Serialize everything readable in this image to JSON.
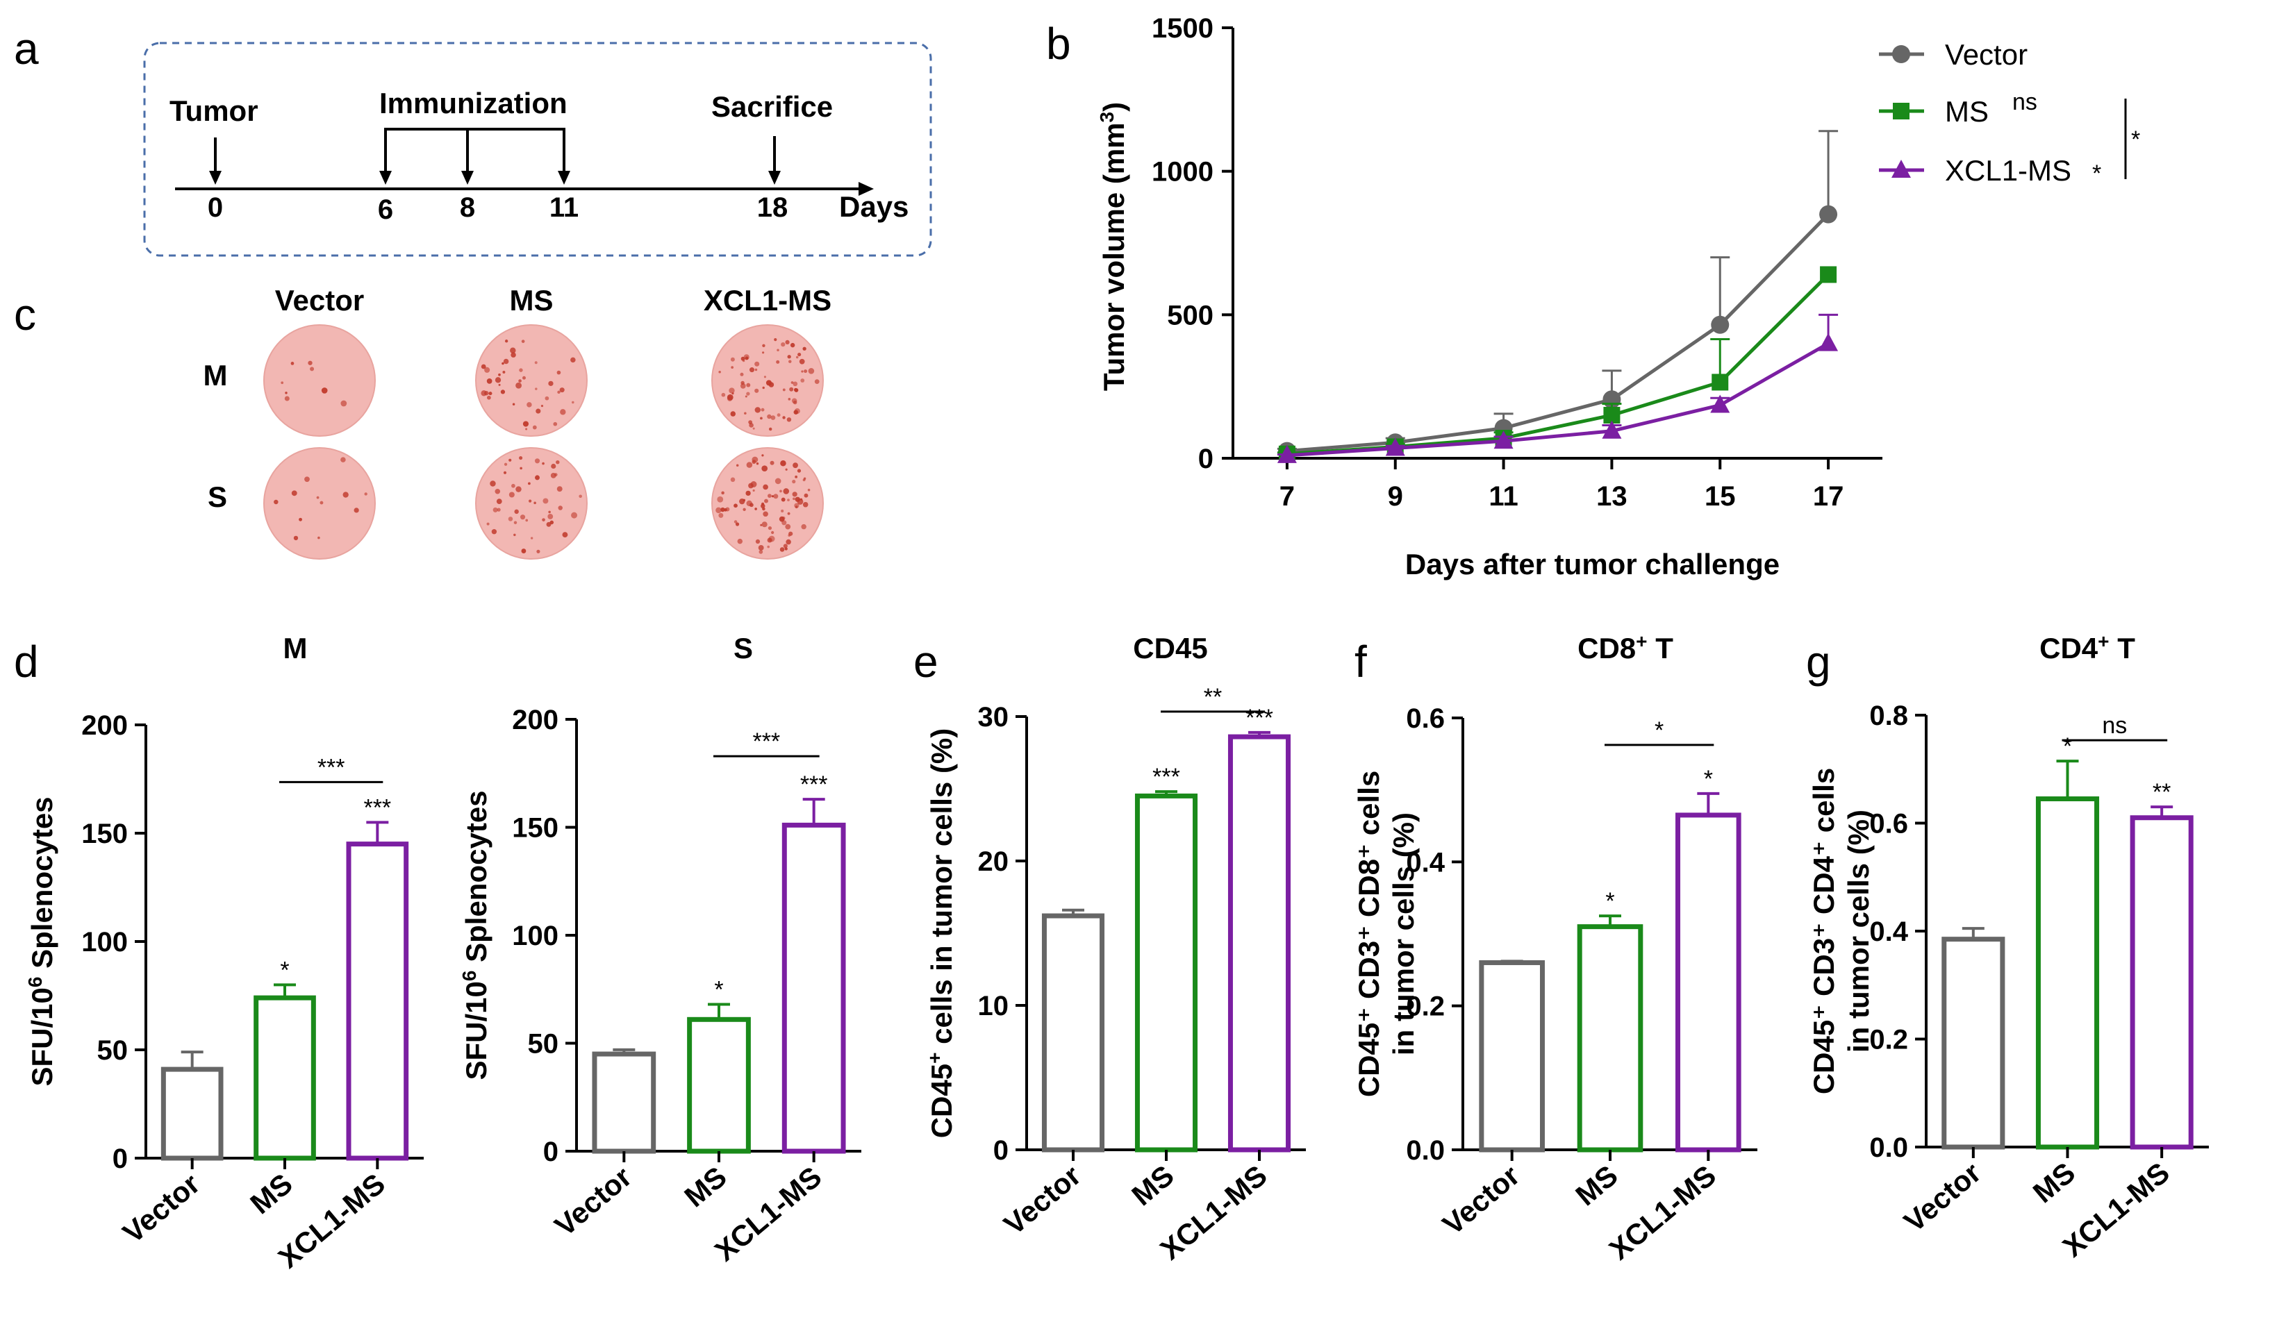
{
  "panel_letters": {
    "a": "a",
    "b": "b",
    "c": "c",
    "d": "d",
    "e": "e",
    "f": "f",
    "g": "g"
  },
  "timeline": {
    "events": [
      {
        "label": "Tumor",
        "days": [
          0
        ]
      },
      {
        "label": "Immunization",
        "days": [
          6,
          8,
          11
        ]
      },
      {
        "label": "Sacrifice",
        "days": [
          18
        ]
      }
    ],
    "ticks": [
      "0",
      "6",
      "8",
      "11",
      "18"
    ],
    "unit": "Days"
  },
  "elispot": {
    "columns": [
      "Vector",
      "MS",
      "XCL1-MS"
    ],
    "rows": [
      "M",
      "S"
    ],
    "spot_color": "#c0392b",
    "well_color": "#f2b7b3",
    "spot_density": [
      [
        8,
        40,
        70
      ],
      [
        12,
        45,
        85
      ]
    ]
  },
  "colors": {
    "Vector": "#666666",
    "MS": "#1a8a1a",
    "XCL1-MS": "#7b1fa2"
  },
  "chart_data": [
    {
      "id": "b",
      "type": "line",
      "title": "",
      "xlabel": "Days after tumor challenge",
      "ylabel_main": "Tumor volume (mm",
      "ylabel_sup": "3",
      "ylabel_close": ")",
      "x": [
        7,
        9,
        11,
        13,
        15,
        17
      ],
      "xticks": [
        "7",
        "9",
        "11",
        "13",
        "15",
        "17"
      ],
      "yticks": [
        "0",
        "500",
        "1000",
        "1500"
      ],
      "ylim": [
        0,
        1500
      ],
      "series": [
        {
          "name": "Vector",
          "marker": "circle",
          "values": [
            25,
            55,
            105,
            205,
            465,
            850
          ],
          "errors": [
            8,
            15,
            50,
            100,
            235,
            290
          ],
          "annot": ""
        },
        {
          "name": "MS",
          "marker": "square",
          "values": [
            15,
            40,
            70,
            150,
            265,
            640
          ],
          "errors": [
            5,
            10,
            20,
            40,
            150,
            0
          ],
          "annot": "ns"
        },
        {
          "name": "XCL1-MS",
          "marker": "triangle",
          "values": [
            10,
            35,
            60,
            95,
            185,
            400
          ],
          "errors": [
            3,
            8,
            15,
            20,
            25,
            100
          ],
          "annot": "*"
        }
      ],
      "bracket_sig": "*"
    },
    {
      "id": "d1",
      "type": "bar",
      "title": "M",
      "ylabel": "SFU/10",
      "ylabel_sup": "6",
      "ylabel_tail": " Splenocytes",
      "categories": [
        "Vector",
        "MS",
        "XCL1-MS"
      ],
      "values": [
        41,
        74,
        145
      ],
      "errors": [
        8,
        6,
        10
      ],
      "sig": [
        "",
        "*",
        "***"
      ],
      "brackets": [
        {
          "from": 1,
          "to": 2,
          "label": "***"
        }
      ],
      "yticks": [
        "0",
        "50",
        "100",
        "150",
        "200"
      ],
      "ylim": [
        0,
        200
      ]
    },
    {
      "id": "d2",
      "type": "bar",
      "title": "S",
      "ylabel": "SFU/10",
      "ylabel_sup": "6",
      "ylabel_tail": " Splenocytes",
      "categories": [
        "Vector",
        "MS",
        "XCL1-MS"
      ],
      "values": [
        45,
        61,
        151
      ],
      "errors": [
        2,
        7,
        12
      ],
      "sig": [
        "",
        "*",
        "***"
      ],
      "brackets": [
        {
          "from": 1,
          "to": 2,
          "label": "***"
        }
      ],
      "yticks": [
        "0",
        "50",
        "100",
        "150",
        "200"
      ],
      "ylim": [
        0,
        200
      ]
    },
    {
      "id": "e",
      "type": "bar",
      "title": "CD45",
      "ylabel": "CD45",
      "ylabel_sup": "+",
      "ylabel_tail": " cells in tumor cells (%)",
      "categories": [
        "Vector",
        "MS",
        "XCL1-MS"
      ],
      "values": [
        16.2,
        24.5,
        28.6
      ],
      "errors": [
        0.4,
        0.3,
        0.3
      ],
      "sig": [
        "",
        "***",
        "***"
      ],
      "brackets": [
        {
          "from": 1,
          "to": 2,
          "label": "**"
        }
      ],
      "yticks": [
        "0",
        "10",
        "20",
        "30"
      ],
      "ylim": [
        0,
        30
      ]
    },
    {
      "id": "f",
      "type": "bar",
      "title": "CD8",
      "title_sup": "+",
      "title_tail": " T",
      "ylabel_line1": "CD45⁺ CD3⁺ CD8⁺ cells",
      "ylabel_line2": "in tumor cells (%)",
      "categories": [
        "Vector",
        "MS",
        "XCL1-MS"
      ],
      "values": [
        0.26,
        0.31,
        0.465
      ],
      "errors": [
        0.002,
        0.015,
        0.03
      ],
      "sig": [
        "",
        "*",
        "*"
      ],
      "brackets": [
        {
          "from": 1,
          "to": 2,
          "label": "*"
        }
      ],
      "yticks": [
        "0.0",
        "0.2",
        "0.4",
        "0.6"
      ],
      "ylim": [
        0,
        0.6
      ]
    },
    {
      "id": "g",
      "type": "bar",
      "title": "CD4",
      "title_sup": "+",
      "title_tail": " T",
      "ylabel_line1": "CD45⁺ CD3⁺ CD4⁺ cells",
      "ylabel_line2": "in tumor cells (%)",
      "categories": [
        "Vector",
        "MS",
        "XCL1-MS"
      ],
      "values": [
        0.385,
        0.645,
        0.61
      ],
      "errors": [
        0.02,
        0.07,
        0.02
      ],
      "sig": [
        "",
        "*",
        "**"
      ],
      "brackets": [
        {
          "from": 1,
          "to": 2,
          "label": "ns"
        }
      ],
      "yticks": [
        "0.0",
        "0.2",
        "0.4",
        "0.6",
        "0.8"
      ],
      "ylim": [
        0,
        0.8
      ]
    }
  ]
}
